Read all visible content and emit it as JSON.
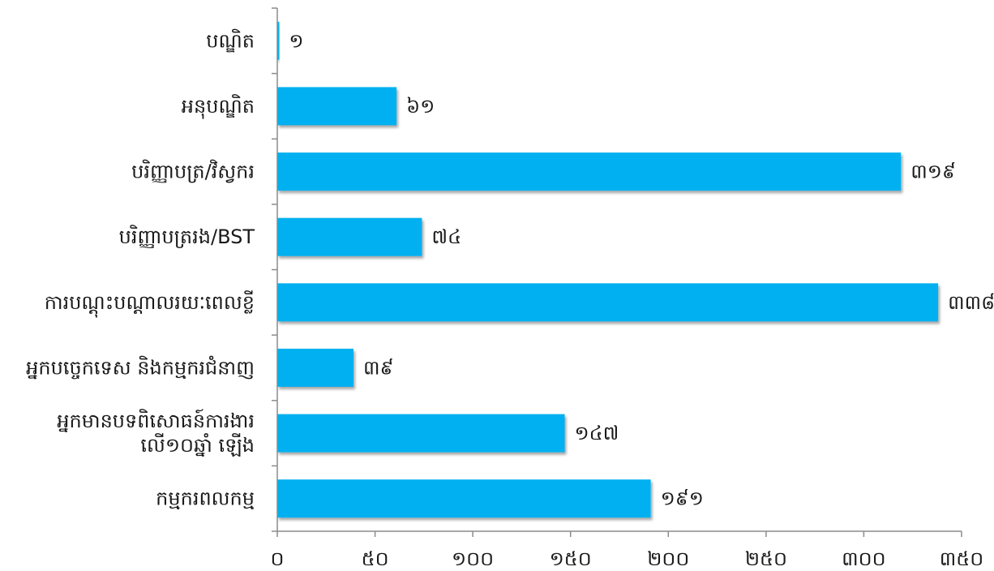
{
  "chart_data": {
    "type": "bar",
    "orientation": "horizontal",
    "categories": [
      "បណ្ឌិត",
      "អនុបណ្ឌិត",
      "បរិញ្ញាបត្រ/វិស្វករ",
      "បរិញ្ញាបត្ររង/BST",
      "ការបណ្ដុះបណ្ដាលរយៈពេលខ្លី",
      "អ្នកបច្ចេកទេស និងកម្មករជំនាញ",
      [
        "អ្នកមានបទពិសោធន៍ការងារ",
        "លើ១០ឆ្នាំ ឡើង"
      ],
      "កម្មករពលកម្ម"
    ],
    "values": [
      1,
      61,
      319,
      74,
      338,
      39,
      147,
      191
    ],
    "value_labels": [
      "១",
      "៦១",
      "៣១៩",
      "៧៤",
      "៣៣៨",
      "៣៩",
      "១៤៧",
      "១៩១"
    ],
    "xlim": [
      0,
      350
    ],
    "ticks": [
      0,
      50,
      100,
      150,
      200,
      250,
      300,
      350
    ],
    "tick_labels": [
      "០",
      "៥០",
      "១០០",
      "១៥០",
      "២០០",
      "២៥០",
      "៣០០",
      "៣៥០"
    ],
    "bar_color": "#00b0f0",
    "grid": false,
    "title": "",
    "xlabel": "",
    "ylabel": ""
  }
}
